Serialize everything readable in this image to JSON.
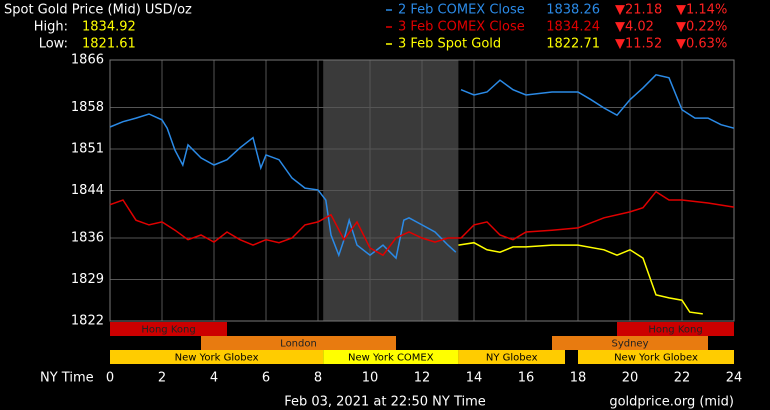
{
  "chart_data": {
    "type": "line",
    "title": "Spot Gold Price (Mid) USD/oz",
    "high_label": "High:",
    "high": 1834.92,
    "low_label": "Low:",
    "low": 1821.61,
    "xlabel": "NY Time",
    "footer": "Feb 03, 2021 at 22:50 NY Time",
    "source": "goldprice.org (mid)",
    "xlim": [
      0,
      24
    ],
    "xticks": [
      0,
      2,
      4,
      6,
      8,
      10,
      12,
      14,
      16,
      18,
      20,
      22,
      24
    ],
    "ylim": [
      1822,
      1866
    ],
    "yticks": [
      1822,
      1829,
      1836,
      1844,
      1851,
      1858,
      1866
    ],
    "grid": true,
    "closed_period": [
      8.2,
      13.4
    ],
    "series": [
      {
        "name": "2 Feb COMEX Close",
        "color": "#2b8ae6",
        "close": 1838.26,
        "change": -21.18,
        "change_label": "▼21.18",
        "change_pct": -1.14,
        "change_pct_label": "▼1.14%",
        "x": [
          0,
          0.5,
          1,
          1.5,
          2,
          2.2,
          2.5,
          2.8,
          3,
          3.5,
          4,
          4.5,
          5,
          5.5,
          5.8,
          6,
          6.5,
          7,
          7.5,
          8,
          8.3,
          8.5,
          8.8,
          9,
          9.2,
          9.5,
          10,
          10.5,
          11,
          11.3,
          11.5,
          12,
          12.5,
          13,
          13.3,
          13.4,
          13.5,
          14,
          14.5,
          15,
          15.5,
          16,
          17,
          18,
          18.5,
          19,
          19.5,
          20,
          20.5,
          21,
          21.5,
          22,
          22.5,
          23,
          23.5,
          24
        ],
        "values": [
          1854.7,
          1855.6,
          1856.2,
          1856.9,
          1855.9,
          1854.5,
          1850.8,
          1848.3,
          1851.7,
          1849.5,
          1848.3,
          1849.2,
          1851.2,
          1852.9,
          1847.8,
          1850.0,
          1849.2,
          1846.1,
          1844.4,
          1844.1,
          1842.4,
          1836.5,
          1833.1,
          1835.7,
          1839.0,
          1834.8,
          1833.1,
          1834.8,
          1832.6,
          1839.0,
          1839.4,
          1838.2,
          1837.0,
          1834.8,
          1833.6,
          null,
          1861.0,
          1860.1,
          1860.6,
          1862.6,
          1861.0,
          1860.1,
          1860.6,
          1860.6,
          1859.3,
          1857.9,
          1856.7,
          1859.3,
          1861.3,
          1863.5,
          1863.0,
          1857.6,
          1856.2,
          1856.2,
          1855.1,
          1854.5
        ]
      },
      {
        "name": "3 Feb COMEX Close",
        "color": "#e00000",
        "close": 1834.24,
        "change": -4.02,
        "change_label": "▼4.02",
        "change_pct": -0.22,
        "change_pct_label": "▼0.22%",
        "x": [
          0,
          0.5,
          1,
          1.5,
          2,
          2.5,
          3,
          3.5,
          4,
          4.5,
          5,
          5.5,
          6,
          6.5,
          7,
          7.5,
          8,
          8.5,
          9,
          9.5,
          10,
          10.5,
          11,
          11.5,
          12,
          12.5,
          13,
          13.5,
          14,
          14.5,
          15,
          15.5,
          16,
          17,
          18,
          19,
          20,
          20.5,
          21,
          21.5,
          22,
          23,
          24
        ],
        "values": [
          1841.6,
          1842.4,
          1839.0,
          1838.2,
          1838.7,
          1837.3,
          1835.7,
          1836.5,
          1835.3,
          1837.0,
          1835.7,
          1834.8,
          1835.7,
          1835.2,
          1836.0,
          1838.2,
          1838.7,
          1839.9,
          1835.7,
          1838.7,
          1834.3,
          1833.1,
          1836.0,
          1837.0,
          1836.0,
          1835.3,
          1836.0,
          1836.0,
          1838.2,
          1838.7,
          1836.5,
          1835.7,
          1837.0,
          1837.3,
          1837.7,
          1839.4,
          1840.4,
          1841.1,
          1843.8,
          1842.4,
          1842.4,
          1841.9,
          1841.2
        ]
      },
      {
        "name": "3 Feb Spot Gold",
        "color": "#ffff00",
        "close": 1822.71,
        "change": -11.52,
        "change_label": "▼11.52",
        "change_pct": -0.63,
        "change_pct_label": "▼0.63%",
        "x": [
          13.4,
          14,
          14.5,
          15,
          15.5,
          16,
          17,
          18,
          19,
          19.5,
          20,
          20.5,
          21,
          21.5,
          22,
          22.3,
          22.8
        ],
        "values": [
          1834.8,
          1835.2,
          1834.0,
          1833.6,
          1834.5,
          1834.5,
          1834.8,
          1834.8,
          1834.0,
          1833.1,
          1834.0,
          1832.6,
          1826.4,
          1825.9,
          1825.5,
          1823.5,
          1823.2
        ]
      }
    ],
    "sessions": [
      {
        "name": "Hong Kong",
        "start": 0,
        "end": 4.5,
        "row": 0,
        "color": "#cc0000"
      },
      {
        "name": "Hong Kong",
        "start": 19.5,
        "end": 24,
        "row": 0,
        "color": "#cc0000"
      },
      {
        "name": "London",
        "start": 3.5,
        "end": 11,
        "row": 1,
        "color": "#e87b10"
      },
      {
        "name": "Sydney",
        "start": 17,
        "end": 23,
        "row": 1,
        "color": "#e87b10"
      },
      {
        "name": "New York Globex",
        "start": 0,
        "end": 8.2,
        "row": 2,
        "color": "#ffcc00"
      },
      {
        "name": "New York COMEX",
        "start": 8.2,
        "end": 13.4,
        "row": 2,
        "color": "#ffff00"
      },
      {
        "name": "NY Globex",
        "start": 13.4,
        "end": 17.5,
        "row": 2,
        "color": "#ffcc00"
      },
      {
        "name": "New York Globex",
        "start": 18,
        "end": 24,
        "row": 2,
        "color": "#ffcc00"
      }
    ]
  }
}
